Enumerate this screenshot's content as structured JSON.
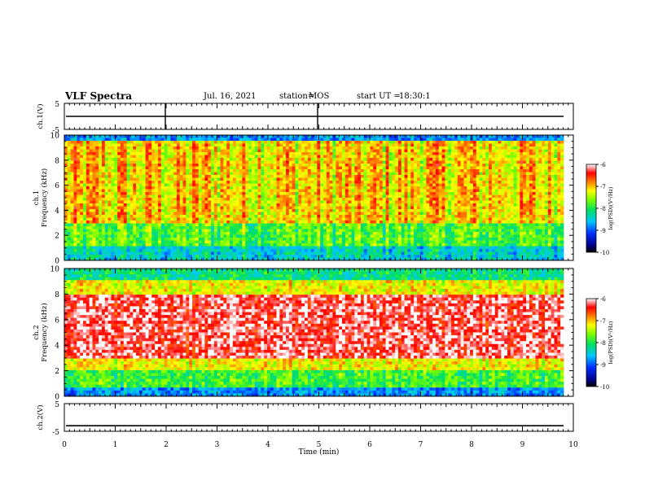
{
  "header": {
    "title": "VLF Spectra",
    "date": "Jul. 16, 2021",
    "station_label": "station=",
    "station_value": "MOS",
    "start_label": "start UT =",
    "start_value": "18:30:1"
  },
  "chart_data": [
    {
      "type": "line",
      "ylabel": "ch.1(V)",
      "ylim": [
        -5,
        5
      ],
      "yticks": [
        "5",
        "-5"
      ],
      "xlim": [
        0,
        10
      ],
      "series": [
        {
          "values_description_level": 0
        }
      ]
    },
    {
      "type": "heatmap",
      "panel": "ch.1",
      "ylabel": "ch.1\nFrequency (kHz)",
      "ylim": [
        0,
        10
      ],
      "yticks": [
        "0",
        "2",
        "4",
        "6",
        "8",
        "10"
      ],
      "xlim": [
        0,
        10
      ],
      "colorbar": {
        "label": "log(PSD)(V²/Hz)",
        "ticks": [
          "-6",
          "-7",
          "-8",
          "-9",
          "-10"
        ],
        "range": [
          -10,
          -6
        ]
      }
    },
    {
      "type": "heatmap",
      "panel": "ch.2",
      "ylabel": "ch.2\nFrequency (kHz)",
      "ylim": [
        0,
        10
      ],
      "yticks": [
        "0",
        "2",
        "4",
        "6",
        "8",
        "10"
      ],
      "xlim": [
        0,
        10
      ],
      "colorbar": {
        "label": "log(PSD)(V²/Hz)",
        "ticks": [
          "-6",
          "-7",
          "-8",
          "-9",
          "-10"
        ],
        "range": [
          -10,
          -6
        ]
      }
    },
    {
      "type": "line",
      "ylabel": "ch.2(V)",
      "ylim": [
        -5,
        5
      ],
      "yticks": [
        "5",
        "-5"
      ],
      "xlim": [
        0,
        10
      ],
      "series": [
        {
          "values_description_level": -3
        }
      ]
    }
  ],
  "xaxis": {
    "label": "Time (min)",
    "ticks": [
      "0",
      "1",
      "2",
      "3",
      "4",
      "5",
      "6",
      "7",
      "8",
      "9",
      "10"
    ],
    "range": [
      0,
      10
    ]
  }
}
